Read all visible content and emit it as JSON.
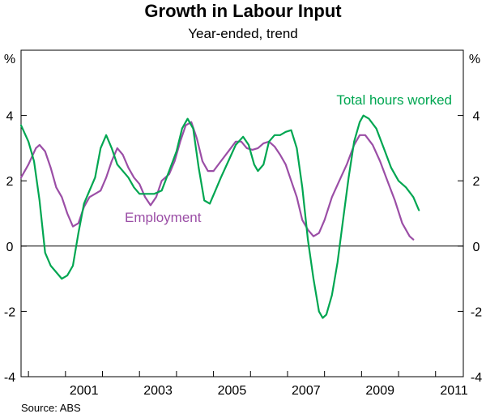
{
  "chart_data": {
    "type": "line",
    "title": "Growth in Labour Input",
    "subtitle": "Year-ended, trend",
    "ylabel_left": "%",
    "ylabel_right": "%",
    "ylim": [
      -4,
      6
    ],
    "yticks": [
      -4,
      -2,
      0,
      2,
      4
    ],
    "xlim": [
      1999.8,
      2011.75
    ],
    "xticks": [
      2001,
      2003,
      2005,
      2007,
      2009,
      2011
    ],
    "x_tick_labels": [
      "2001",
      "2003",
      "2005",
      "2007",
      "2009",
      "2011"
    ],
    "grid": false,
    "zero_line": true,
    "source": "Source: ABS",
    "series": [
      {
        "name": "Total hours worked",
        "color": "#00a651",
        "label_position": "top-right",
        "points": [
          [
            1999.8,
            3.7
          ],
          [
            2000.0,
            3.2
          ],
          [
            2000.15,
            2.6
          ],
          [
            2000.3,
            1.4
          ],
          [
            2000.45,
            -0.2
          ],
          [
            2000.6,
            -0.6
          ],
          [
            2000.75,
            -0.8
          ],
          [
            2000.9,
            -1.0
          ],
          [
            2001.05,
            -0.9
          ],
          [
            2001.2,
            -0.6
          ],
          [
            2001.35,
            0.4
          ],
          [
            2001.5,
            1.3
          ],
          [
            2001.65,
            1.7
          ],
          [
            2001.8,
            2.1
          ],
          [
            2001.95,
            3.0
          ],
          [
            2002.1,
            3.4
          ],
          [
            2002.25,
            3.0
          ],
          [
            2002.4,
            2.5
          ],
          [
            2002.55,
            2.3
          ],
          [
            2002.7,
            2.1
          ],
          [
            2002.85,
            1.8
          ],
          [
            2003.0,
            1.6
          ],
          [
            2003.2,
            1.6
          ],
          [
            2003.4,
            1.6
          ],
          [
            2003.6,
            1.7
          ],
          [
            2003.8,
            2.3
          ],
          [
            2004.0,
            2.9
          ],
          [
            2004.15,
            3.6
          ],
          [
            2004.3,
            3.9
          ],
          [
            2004.45,
            3.6
          ],
          [
            2004.6,
            2.4
          ],
          [
            2004.75,
            1.4
          ],
          [
            2004.9,
            1.3
          ],
          [
            2005.05,
            1.7
          ],
          [
            2005.2,
            2.1
          ],
          [
            2005.4,
            2.6
          ],
          [
            2005.6,
            3.1
          ],
          [
            2005.8,
            3.35
          ],
          [
            2005.95,
            3.1
          ],
          [
            2006.1,
            2.5
          ],
          [
            2006.2,
            2.3
          ],
          [
            2006.35,
            2.5
          ],
          [
            2006.5,
            3.2
          ],
          [
            2006.65,
            3.4
          ],
          [
            2006.8,
            3.4
          ],
          [
            2006.95,
            3.5
          ],
          [
            2007.1,
            3.55
          ],
          [
            2007.25,
            3.0
          ],
          [
            2007.4,
            1.8
          ],
          [
            2007.55,
            0.2
          ],
          [
            2007.7,
            -1.0
          ],
          [
            2007.85,
            -2.0
          ],
          [
            2007.95,
            -2.2
          ],
          [
            2008.05,
            -2.1
          ],
          [
            2008.2,
            -1.5
          ],
          [
            2008.35,
            -0.5
          ],
          [
            2008.5,
            0.8
          ],
          [
            2008.65,
            2.1
          ],
          [
            2008.8,
            3.2
          ],
          [
            2008.95,
            3.8
          ],
          [
            2009.05,
            4.0
          ],
          [
            2009.2,
            3.9
          ],
          [
            2009.4,
            3.6
          ],
          [
            2009.6,
            3.0
          ],
          [
            2009.8,
            2.4
          ],
          [
            2010.0,
            2.0
          ],
          [
            2010.2,
            1.8
          ],
          [
            2010.4,
            1.5
          ],
          [
            2010.55,
            1.1
          ]
        ]
      },
      {
        "name": "Employment",
        "color": "#9b4ea6",
        "label_position": "center-left",
        "points": [
          [
            1999.8,
            2.1
          ],
          [
            2000.0,
            2.5
          ],
          [
            2000.2,
            3.0
          ],
          [
            2000.3,
            3.1
          ],
          [
            2000.45,
            2.9
          ],
          [
            2000.6,
            2.4
          ],
          [
            2000.75,
            1.8
          ],
          [
            2000.9,
            1.5
          ],
          [
            2001.05,
            1.0
          ],
          [
            2001.2,
            0.6
          ],
          [
            2001.35,
            0.7
          ],
          [
            2001.5,
            1.2
          ],
          [
            2001.65,
            1.5
          ],
          [
            2001.8,
            1.6
          ],
          [
            2001.95,
            1.7
          ],
          [
            2002.1,
            2.1
          ],
          [
            2002.25,
            2.6
          ],
          [
            2002.4,
            3.0
          ],
          [
            2002.55,
            2.8
          ],
          [
            2002.7,
            2.4
          ],
          [
            2002.85,
            2.1
          ],
          [
            2003.0,
            1.9
          ],
          [
            2003.15,
            1.5
          ],
          [
            2003.3,
            1.25
          ],
          [
            2003.45,
            1.5
          ],
          [
            2003.6,
            2.0
          ],
          [
            2003.8,
            2.2
          ],
          [
            2003.95,
            2.6
          ],
          [
            2004.1,
            3.2
          ],
          [
            2004.25,
            3.7
          ],
          [
            2004.4,
            3.8
          ],
          [
            2004.55,
            3.3
          ],
          [
            2004.7,
            2.6
          ],
          [
            2004.85,
            2.3
          ],
          [
            2005.0,
            2.3
          ],
          [
            2005.2,
            2.6
          ],
          [
            2005.4,
            2.9
          ],
          [
            2005.6,
            3.2
          ],
          [
            2005.75,
            3.2
          ],
          [
            2005.9,
            3.0
          ],
          [
            2006.05,
            2.95
          ],
          [
            2006.2,
            3.0
          ],
          [
            2006.35,
            3.15
          ],
          [
            2006.5,
            3.2
          ],
          [
            2006.65,
            3.05
          ],
          [
            2006.8,
            2.8
          ],
          [
            2006.95,
            2.5
          ],
          [
            2007.1,
            2.0
          ],
          [
            2007.25,
            1.5
          ],
          [
            2007.4,
            0.8
          ],
          [
            2007.55,
            0.5
          ],
          [
            2007.7,
            0.3
          ],
          [
            2007.85,
            0.4
          ],
          [
            2008.0,
            0.8
          ],
          [
            2008.2,
            1.5
          ],
          [
            2008.4,
            2.0
          ],
          [
            2008.6,
            2.5
          ],
          [
            2008.8,
            3.1
          ],
          [
            2008.95,
            3.4
          ],
          [
            2009.1,
            3.4
          ],
          [
            2009.3,
            3.1
          ],
          [
            2009.5,
            2.6
          ],
          [
            2009.7,
            2.0
          ],
          [
            2009.9,
            1.4
          ],
          [
            2010.1,
            0.7
          ],
          [
            2010.3,
            0.3
          ],
          [
            2010.4,
            0.2
          ]
        ]
      }
    ]
  }
}
